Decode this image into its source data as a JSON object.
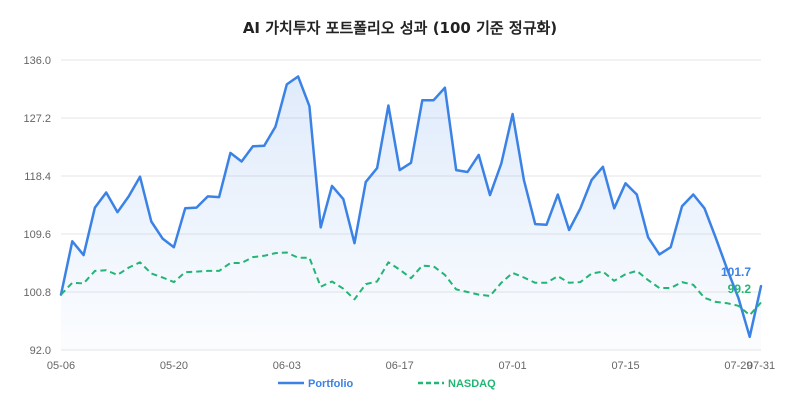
{
  "chart_data": {
    "type": "line",
    "title": "AI 가치투자 포트폴리오 성과 (100 기준 정규화)",
    "xlabel": "",
    "ylabel": "",
    "ylim": [
      92.0,
      136.0
    ],
    "yticks": [
      92.0,
      100.8,
      109.6,
      118.4,
      127.2,
      136.0
    ],
    "ytick_labels": [
      "92.0",
      "100.8",
      "109.6",
      "118.4",
      "127.2",
      "136.0"
    ],
    "x": [
      "05-06",
      "05-07",
      "05-08",
      "05-09",
      "05-10",
      "05-13",
      "05-14",
      "05-15",
      "05-16",
      "05-17",
      "05-20",
      "05-21",
      "05-22",
      "05-23",
      "05-24",
      "05-27",
      "05-28",
      "05-29",
      "05-30",
      "05-31",
      "06-03",
      "06-04",
      "06-05",
      "06-06",
      "06-07",
      "06-10",
      "06-11",
      "06-12",
      "06-13",
      "06-14",
      "06-17",
      "06-18",
      "06-19",
      "06-20",
      "06-21",
      "06-24",
      "06-25",
      "06-26",
      "06-27",
      "06-28",
      "07-01",
      "07-02",
      "07-03",
      "07-04",
      "07-05",
      "07-08",
      "07-09",
      "07-10",
      "07-11",
      "07-12",
      "07-15",
      "07-16",
      "07-17",
      "07-18",
      "07-19",
      "07-22",
      "07-23",
      "07-24",
      "07-25",
      "07-26",
      "07-29",
      "07-30",
      "07-31"
    ],
    "xtick_labels": [
      "05-06",
      "05-20",
      "06-03",
      "06-17",
      "07-01",
      "07-15",
      "07-29",
      "07-31"
    ],
    "series": [
      {
        "name": "Portfolio",
        "color": "#3b82e6",
        "dash": "solid",
        "end_label": "101.7",
        "values": [
          100.4,
          108.5,
          106.4,
          113.6,
          115.9,
          112.9,
          115.3,
          118.3,
          111.5,
          108.9,
          107.6,
          113.5,
          113.6,
          115.3,
          115.2,
          121.9,
          120.6,
          122.9,
          123.0,
          125.9,
          132.3,
          133.5,
          129.0,
          110.6,
          116.9,
          114.9,
          108.2,
          117.5,
          119.6,
          129.1,
          119.3,
          120.4,
          129.9,
          129.9,
          131.8,
          119.3,
          119.0,
          121.6,
          115.5,
          120.3,
          127.8,
          117.8,
          111.1,
          111.0,
          115.6,
          110.2,
          113.5,
          117.8,
          119.8,
          113.5,
          117.3,
          115.6,
          109.1,
          106.5,
          107.6,
          113.8,
          115.6,
          113.5,
          109.0,
          104.3,
          99.9,
          94.0,
          101.7
        ]
      },
      {
        "name": "NASDAQ",
        "color": "#22b573",
        "dash": "dashed",
        "end_label": "99.2",
        "values": [
          100.4,
          102.2,
          102.1,
          104.0,
          104.1,
          103.4,
          104.5,
          105.3,
          103.6,
          103.0,
          102.3,
          103.8,
          103.9,
          104.0,
          104.0,
          105.2,
          105.2,
          106.1,
          106.3,
          106.7,
          106.8,
          106.0,
          106.0,
          101.6,
          102.4,
          101.3,
          99.7,
          102.0,
          102.4,
          105.3,
          104.2,
          102.9,
          104.8,
          104.7,
          103.4,
          101.2,
          100.8,
          100.4,
          100.2,
          102.2,
          103.7,
          103.0,
          102.2,
          102.2,
          103.2,
          102.2,
          102.3,
          103.6,
          103.9,
          102.5,
          103.5,
          104.0,
          102.6,
          101.4,
          101.4,
          102.3,
          101.9,
          99.9,
          99.3,
          99.1,
          98.7,
          97.3,
          99.2
        ]
      }
    ],
    "legend": {
      "position": "bottom"
    },
    "grid": true,
    "fill_first_series": true
  }
}
